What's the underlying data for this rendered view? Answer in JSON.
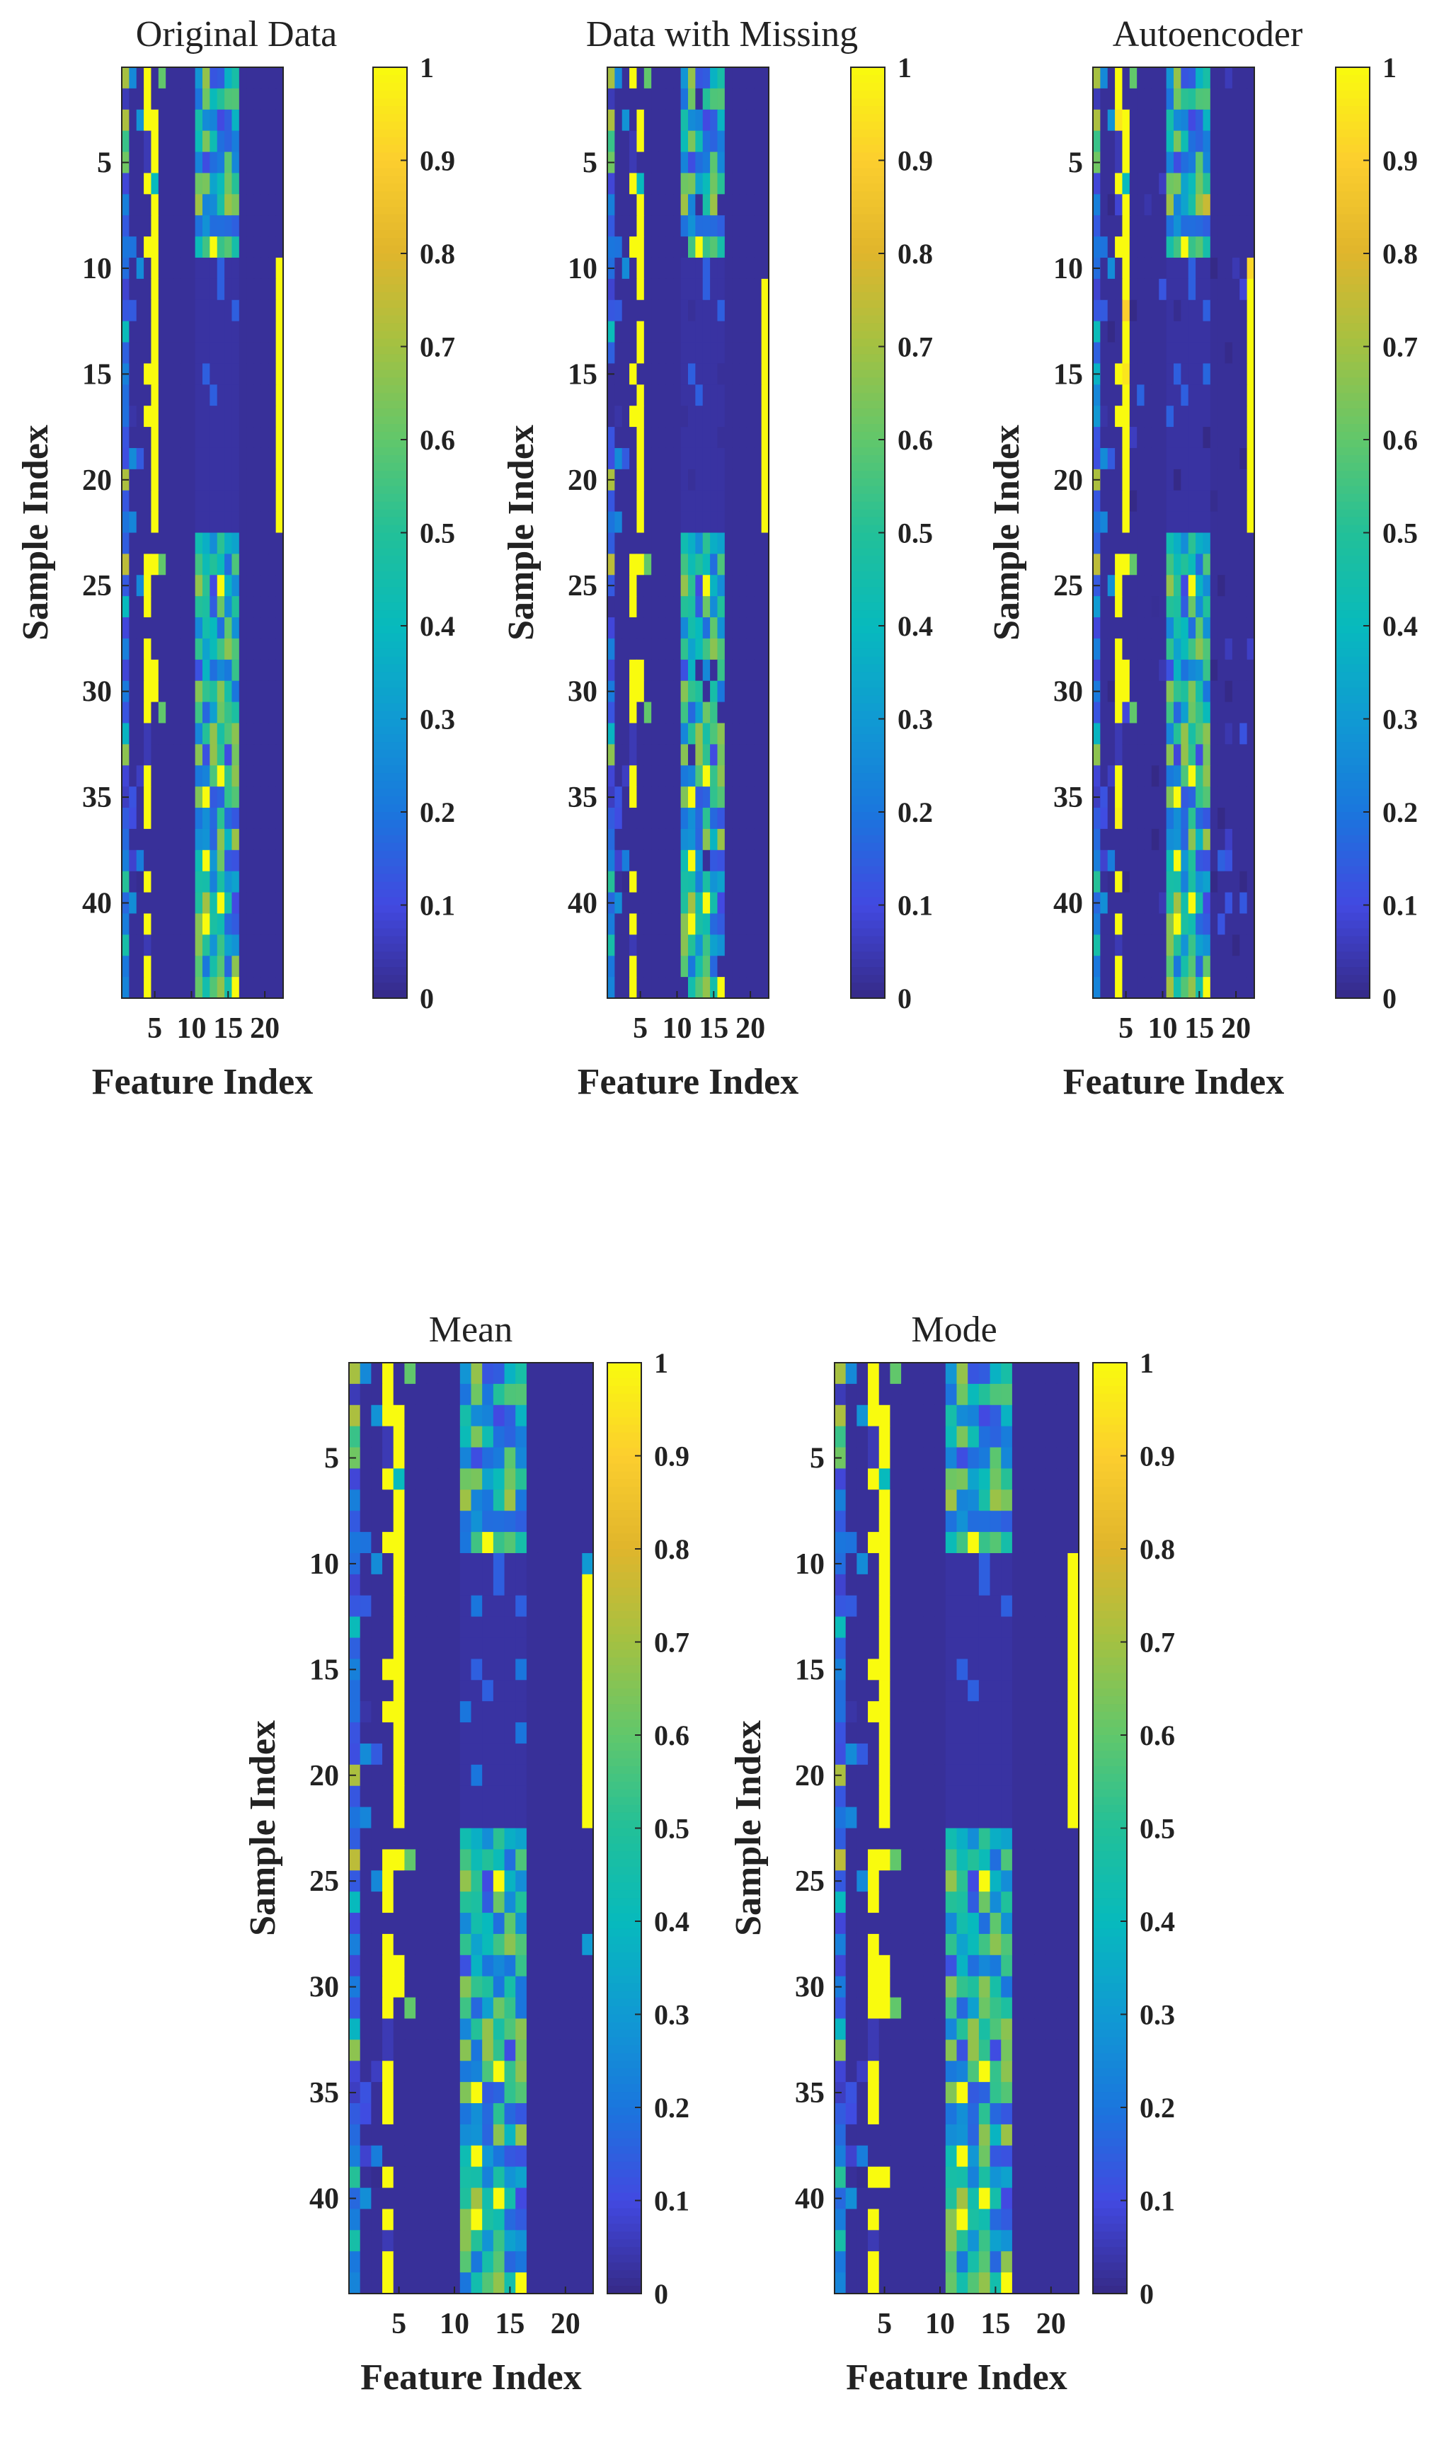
{
  "figure": {
    "description_free": true
  },
  "chart_data": [
    {
      "type": "heatmap",
      "title": "Original Data",
      "xlabel": "Feature Index",
      "ylabel": "Sample Index",
      "xticks": [
        5,
        10,
        15,
        20
      ],
      "yticks": [
        5,
        10,
        15,
        20,
        25,
        30,
        35,
        40
      ],
      "xlim": [
        0.5,
        22.5
      ],
      "ylim": [
        0.5,
        44.5
      ],
      "colorbar_ticks": [
        "0",
        "0.1",
        "0.2",
        "0.3",
        "0.4",
        "0.5",
        "0.6",
        "0.7",
        "0.8",
        "0.9",
        "1"
      ],
      "colormap": "parula",
      "clim": [
        0,
        1
      ],
      "n_samples": 44,
      "n_features": 22,
      "variant": "original"
    },
    {
      "type": "heatmap",
      "title": "Data with Missing",
      "xlabel": "Feature Index",
      "ylabel": "Sample Index",
      "xticks": [
        5,
        10,
        15,
        20
      ],
      "yticks": [
        5,
        10,
        15,
        20,
        25,
        30,
        35,
        40
      ],
      "xlim": [
        0.5,
        22.5
      ],
      "ylim": [
        0.5,
        44.5
      ],
      "colorbar_ticks": [
        "0",
        "0.1",
        "0.2",
        "0.3",
        "0.4",
        "0.5",
        "0.6",
        "0.7",
        "0.8",
        "0.9",
        "1"
      ],
      "colormap": "parula",
      "clim": [
        0,
        1
      ],
      "n_samples": 44,
      "n_features": 22,
      "variant": "missing"
    },
    {
      "type": "heatmap",
      "title": "Autoencoder",
      "xlabel": "Feature Index",
      "ylabel": "Sample Index",
      "xticks": [
        5,
        10,
        15,
        20
      ],
      "yticks": [
        5,
        10,
        15,
        20,
        25,
        30,
        35,
        40
      ],
      "xlim": [
        0.5,
        22.5
      ],
      "ylim": [
        0.5,
        44.5
      ],
      "colorbar_ticks": [
        "0",
        "0.1",
        "0.2",
        "0.3",
        "0.4",
        "0.5",
        "0.6",
        "0.7",
        "0.8",
        "0.9",
        "1"
      ],
      "colormap": "parula",
      "clim": [
        0,
        1
      ],
      "n_samples": 44,
      "n_features": 22,
      "variant": "autoencoder"
    },
    {
      "type": "heatmap",
      "title": "Mean",
      "xlabel": "Feature Index",
      "ylabel": "Sample Index",
      "xticks": [
        5,
        10,
        15,
        20
      ],
      "yticks": [
        5,
        10,
        15,
        20,
        25,
        30,
        35,
        40
      ],
      "xlim": [
        0.5,
        22.5
      ],
      "ylim": [
        0.5,
        44.5
      ],
      "colorbar_ticks": [
        "0",
        "0.1",
        "0.2",
        "0.3",
        "0.4",
        "0.5",
        "0.6",
        "0.7",
        "0.8",
        "0.9",
        "1"
      ],
      "colormap": "parula",
      "clim": [
        0,
        1
      ],
      "n_samples": 44,
      "n_features": 22,
      "variant": "mean"
    },
    {
      "type": "heatmap",
      "title": "Mode",
      "xlabel": "Feature Index",
      "ylabel": "Sample Index",
      "xticks": [
        5,
        10,
        15,
        20
      ],
      "yticks": [
        5,
        10,
        15,
        20,
        25,
        30,
        35,
        40
      ],
      "xlim": [
        0.5,
        22.5
      ],
      "ylim": [
        0.5,
        44.5
      ],
      "colorbar_ticks": [
        "0",
        "0.1",
        "0.2",
        "0.3",
        "0.4",
        "0.5",
        "0.6",
        "0.7",
        "0.8",
        "0.9",
        "1"
      ],
      "colormap": "parula",
      "clim": [
        0,
        1
      ],
      "n_samples": 44,
      "n_features": 22,
      "variant": "mode"
    }
  ]
}
